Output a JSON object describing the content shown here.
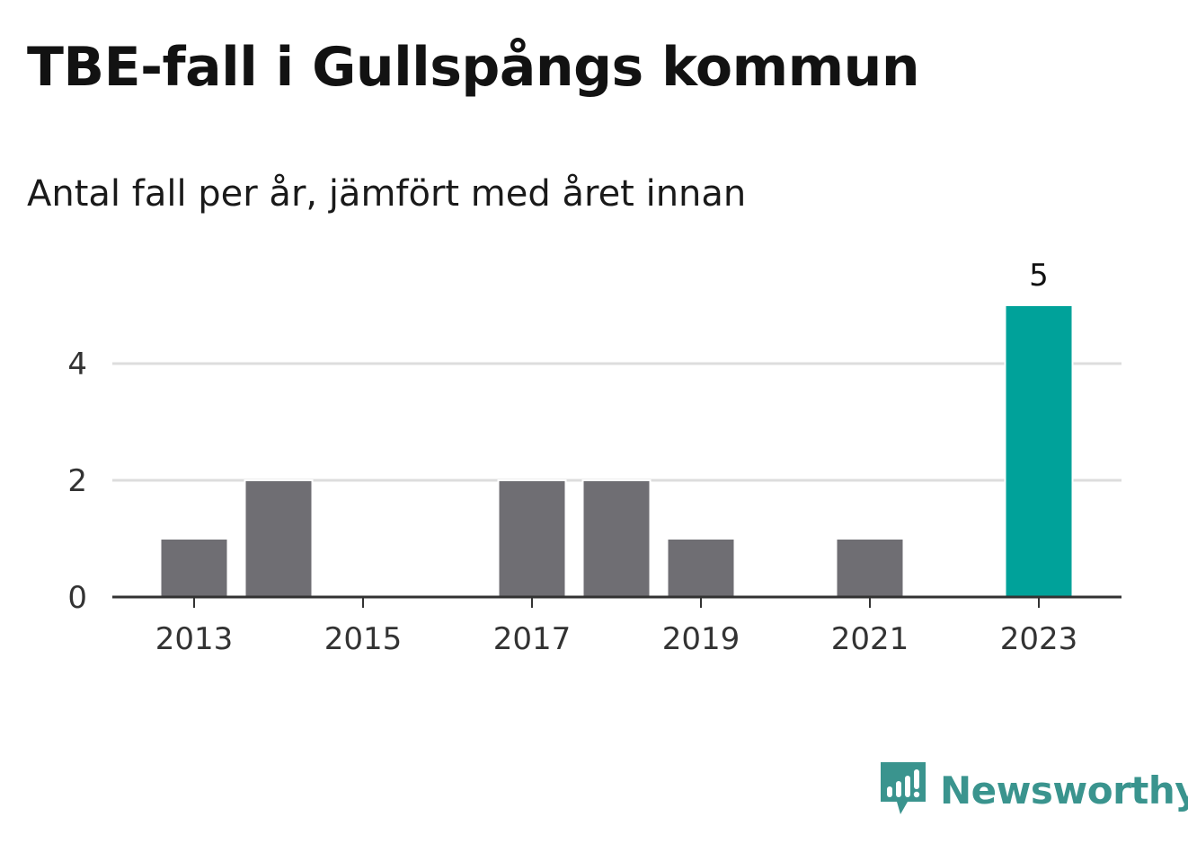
{
  "title": "TBE-fall i Gullspångs kommun",
  "subtitle": "Antal fall per år, jämfört med året innan",
  "brand": {
    "name": "Newsworthy",
    "icon": "newsworthy-logo-icon",
    "color": "#3a948e"
  },
  "colors": {
    "bar": "#6f6e73",
    "highlight": "#00a29a",
    "grid": "#dddddd",
    "axis": "#333333"
  },
  "chart_data": {
    "type": "bar",
    "title": "TBE-fall i Gullspångs kommun",
    "subtitle": "Antal fall per år, jämfört med året innan",
    "categories": [
      "2013",
      "2014",
      "2015",
      "2016",
      "2017",
      "2018",
      "2019",
      "2020",
      "2021",
      "2022",
      "2023"
    ],
    "values": [
      1,
      2,
      0,
      0,
      2,
      2,
      1,
      0,
      1,
      0,
      5
    ],
    "x_tick_labels": [
      "2013",
      "2015",
      "2017",
      "2019",
      "2021",
      "2023"
    ],
    "y_ticks": [
      0,
      2,
      4
    ],
    "ylim": [
      0,
      5
    ],
    "xlabel": "",
    "ylabel": "",
    "highlight_category": "2023",
    "data_labels": [
      {
        "category": "2023",
        "text": "5"
      }
    ],
    "grid": true,
    "legend": "none"
  }
}
